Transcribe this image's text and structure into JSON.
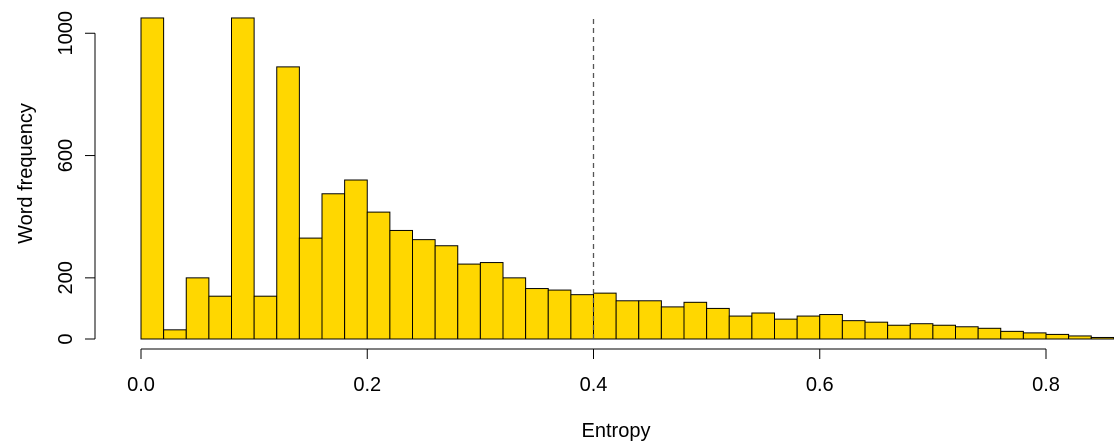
{
  "chart_data": {
    "type": "bar",
    "subtype": "histogram",
    "xlabel": "Entropy",
    "ylabel": "Word frequency",
    "bin_width": 0.02,
    "bin_start": 0.0,
    "xlim": [
      0.0,
      0.86
    ],
    "ylim": [
      0,
      1000
    ],
    "x_ticks": [
      0.0,
      0.2,
      0.4,
      0.6,
      0.8
    ],
    "x_tick_labels": [
      "0.0",
      "0.2",
      "0.4",
      "0.6",
      "0.8"
    ],
    "y_ticks": [
      0,
      200,
      600,
      1000
    ],
    "y_tick_labels": [
      "0",
      "200",
      "600",
      "1000"
    ],
    "values": [
      1050,
      30,
      200,
      140,
      1050,
      140,
      890,
      330,
      475,
      520,
      415,
      355,
      325,
      305,
      245,
      250,
      200,
      165,
      160,
      145,
      150,
      125,
      125,
      105,
      120,
      100,
      75,
      85,
      65,
      75,
      80,
      60,
      55,
      45,
      50,
      45,
      40,
      35,
      25,
      20,
      15,
      10,
      5
    ],
    "reference_line": {
      "x": 0.4,
      "style": "dashed"
    },
    "bar_color": "#FFD700",
    "grid": false,
    "legend": "none"
  }
}
